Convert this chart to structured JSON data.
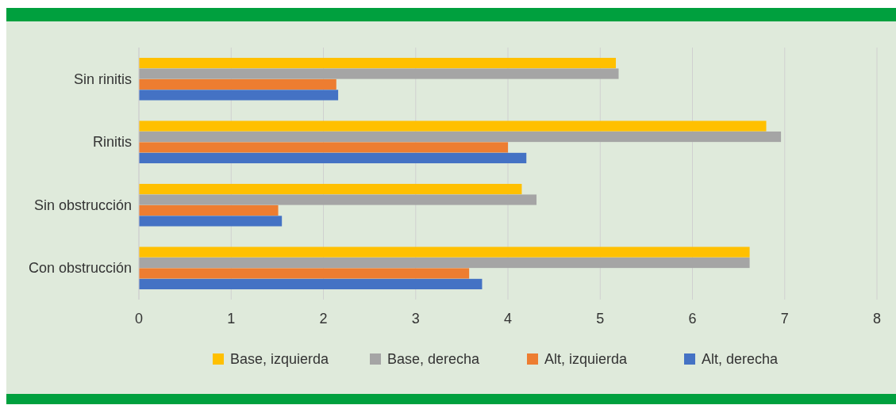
{
  "chart_data": {
    "type": "bar",
    "orientation": "horizontal",
    "categories": [
      "Sin rinitis",
      "Rinitis",
      "Sin obstrucción",
      "Con obstrucción"
    ],
    "series": [
      {
        "name": "Base, izquierda",
        "color": "#ffc000",
        "values": [
          5.17,
          6.8,
          4.15,
          6.62
        ]
      },
      {
        "name": "Base, derecha",
        "color": "#a5a5a5",
        "values": [
          5.2,
          6.96,
          4.31,
          6.62
        ]
      },
      {
        "name": "Alt, izquierda",
        "color": "#ed7d31",
        "values": [
          2.14,
          4.0,
          1.51,
          3.58
        ]
      },
      {
        "name": "Alt, derecha",
        "color": "#4472c4",
        "values": [
          2.16,
          4.2,
          1.55,
          3.72
        ]
      }
    ],
    "xlim": [
      0,
      8
    ],
    "xticks": [
      0,
      1,
      2,
      3,
      4,
      5,
      6,
      7,
      8
    ],
    "grid": "x",
    "legend": "bottom"
  }
}
